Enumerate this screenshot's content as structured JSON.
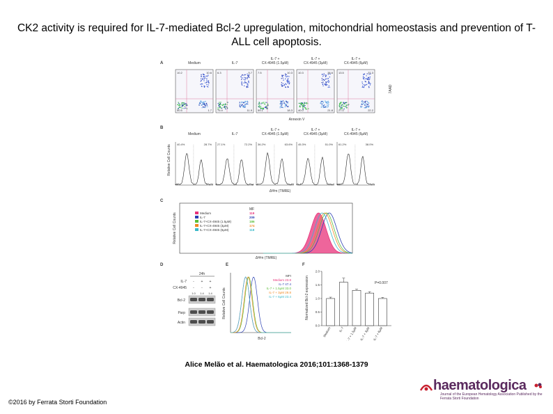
{
  "title": "CK2 activity is required for IL-7-mediated Bcl-2 upregulation, mitochondrial homeostasis and prevention of T-ALL cell apoptosis.",
  "citation": "Alice Melão et al. Haematologica 2016;101:1368-1379",
  "copyright": "©2016 by Ferrata Storti Foundation",
  "logo": {
    "name": "haematologica",
    "sub": "Journal of the European Hematology Association Published by the Ferrata Storti Foundation"
  },
  "panelA": {
    "letter": "A",
    "headers": [
      "Medium",
      "IL-7",
      "IL-7 +\nCX-4945 (1.5μM)",
      "IL-7 +\nCX-4945 (3μM)",
      "IL-7 +\nCX-4945 (6μM)"
    ],
    "xlabel": "Annexin V",
    "ylabel": "7AAD",
    "quadrants": [
      [
        "10.2",
        "10.6",
        "50.5",
        "1.7"
      ],
      [
        "6.3",
        "5.7",
        "75.9",
        "11.9"
      ],
      [
        "7.5",
        "10.3",
        "59.1",
        "18.3"
      ],
      [
        "10.3",
        "38.6",
        "40.0",
        "21.8"
      ],
      [
        "13.5",
        "37.3",
        "27.0",
        "22.2"
      ]
    ]
  },
  "panelB": {
    "letter": "B",
    "headers": [
      "Medium",
      "IL-7",
      "IL-7 +\nCX-4945 (1.5μM)",
      "IL-7 +\nCX-4945 (3μM)",
      "IL-7 +\nCX-4945 (6μM)"
    ],
    "xlabel": "ΔΨm (TMRE)",
    "ylabel": "Relative Cell Counts",
    "percents": [
      [
        "40.4%",
        "28.7%"
      ],
      [
        "27.1%",
        "72.2%"
      ],
      [
        "36.2%",
        "63.6%"
      ],
      [
        "45.3%",
        "51.0%"
      ],
      [
        "61.2%",
        "38.0%"
      ]
    ]
  },
  "panelC": {
    "letter": "C",
    "xlabel": "ΔΨm (TMRE)",
    "ylabel": "Relative Cell Counts",
    "mf_header": "MF",
    "legend": [
      {
        "label": "Medium",
        "value": "119",
        "color": "#e8327a"
      },
      {
        "label": "IL-7",
        "value": "209",
        "color": "#2a3fb3"
      },
      {
        "label": "IL-7+CX-4945 (1.5μM)",
        "value": "186",
        "color": "#5bbf3a"
      },
      {
        "label": "IL-7+CX-4945 (3μM)",
        "value": "174",
        "color": "#f08a24"
      },
      {
        "label": "IL-7+CX-4945 (6μM)",
        "value": "118",
        "color": "#3ab9c9"
      }
    ]
  },
  "panelD": {
    "letter": "D",
    "time": "24h",
    "rows": [
      "IL-7",
      "CX-4945"
    ],
    "row_values": [
      [
        "-",
        "+",
        "+"
      ],
      [
        "-",
        "-",
        "+"
      ]
    ],
    "ratios": [
      "1.0",
      "1.4",
      "1.4"
    ],
    "blots": [
      "Bcl-2",
      "Parp",
      "Actin"
    ]
  },
  "panelE": {
    "letter": "E",
    "xlabel": "Bcl-2",
    "ylabel": "Relative Cell Counts",
    "mfi_header": "MFI",
    "legend": [
      {
        "label": "Medium",
        "value": "23.8",
        "color": "#e8327a"
      },
      {
        "label": "IL-7",
        "value": "47.4",
        "color": "#2a3fb3"
      },
      {
        "label": "IL-7 + 1.5μM",
        "value": "33.0",
        "color": "#5bbf3a"
      },
      {
        "label": "IL-7 + 3μM",
        "value": "29.8",
        "color": "#f08a24"
      },
      {
        "label": "IL-7 + 6μM",
        "value": "23.4",
        "color": "#3ab9c9"
      }
    ]
  },
  "chart_data": {
    "type": "bar",
    "categories": [
      "Medium",
      "IL-7",
      "IL-7 + 1.5μM",
      "IL-7 + 3μM",
      "IL-7 + 6μM"
    ],
    "values": [
      1.0,
      1.6,
      1.3,
      1.2,
      1.0
    ],
    "errors": [
      0.05,
      0.15,
      0.04,
      0.05,
      0.04
    ],
    "ylabel": "Normalized Bcl-2 expression",
    "ylim": [
      0,
      2.0
    ],
    "yticks": [
      "0.0",
      "0.5",
      "1.0",
      "1.5",
      "2.0"
    ],
    "pvalue": "P=0.007",
    "letter": "F"
  }
}
